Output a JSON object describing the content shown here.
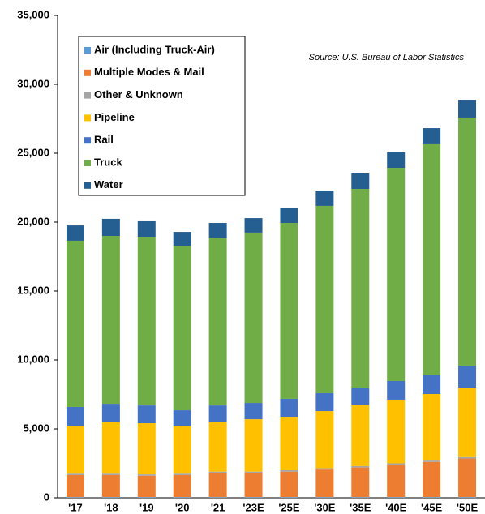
{
  "chart_data": {
    "type": "stacked_bar",
    "annotation": "Source: U.S. Bureau of Labor Statistics",
    "categories": [
      "'17",
      "'18",
      "'19",
      "'20",
      "'21",
      "'23E",
      "'25E",
      "'30E",
      "'35E",
      "'40E",
      "'45E",
      "'50E"
    ],
    "series": [
      {
        "name": "Air (Including Truck-Air)",
        "color": "#5b9bd5",
        "values": [
          50,
          50,
          50,
          50,
          50,
          50,
          50,
          50,
          50,
          50,
          50,
          50
        ]
      },
      {
        "name": "Multiple Modes & Mail",
        "color": "#ed7d31",
        "values": [
          1600,
          1600,
          1550,
          1600,
          1750,
          1750,
          1850,
          2000,
          2150,
          2350,
          2550,
          2800
        ]
      },
      {
        "name": "Other & Unknown",
        "color": "#a5a5a5",
        "values": [
          100,
          100,
          100,
          100,
          100,
          100,
          100,
          100,
          100,
          100,
          100,
          100
        ]
      },
      {
        "name": "Pipeline",
        "color": "#ffc000",
        "values": [
          3430,
          3720,
          3710,
          3430,
          3570,
          3800,
          3880,
          4140,
          4410,
          4620,
          4830,
          5050
        ]
      },
      {
        "name": "Rail",
        "color": "#4472c4",
        "values": [
          1410,
          1350,
          1290,
          1170,
          1230,
          1180,
          1300,
          1300,
          1290,
          1350,
          1410,
          1590
        ]
      },
      {
        "name": "Truck",
        "color": "#70ad47",
        "values": [
          12060,
          12180,
          12240,
          11940,
          12180,
          12360,
          12760,
          13590,
          14410,
          15470,
          16710,
          18000
        ]
      },
      {
        "name": "Water",
        "color": "#255e91",
        "values": [
          1110,
          1240,
          1180,
          1000,
          1060,
          1050,
          1120,
          1110,
          1120,
          1120,
          1170,
          1290
        ]
      }
    ],
    "ylim": [
      0,
      35000
    ],
    "yticks": [
      0,
      {
        "value": 5000,
        "label": "5,000"
      },
      {
        "value": 10000,
        "label": "10,000"
      },
      {
        "value": 15000,
        "label": "15,000"
      },
      {
        "value": 20000,
        "label": "20,000"
      },
      {
        "value": 25000,
        "label": "25,000"
      },
      {
        "value": 30000,
        "label": "30,000"
      },
      {
        "value": 35000,
        "label": "35,000"
      }
    ],
    "legend": "upper left"
  }
}
